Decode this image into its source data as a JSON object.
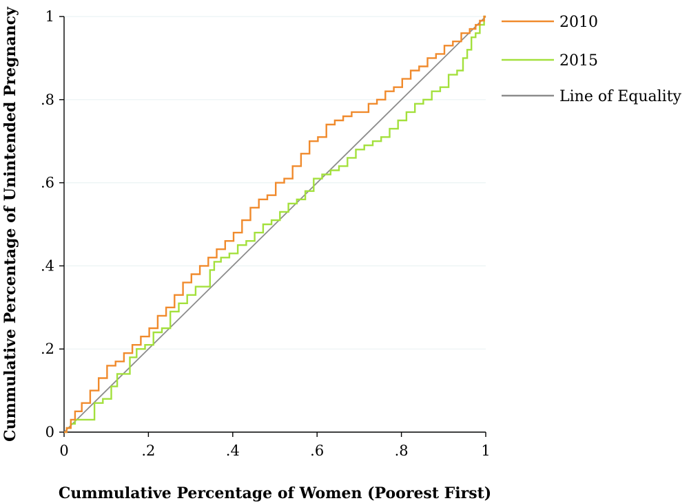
{
  "chart_data": {
    "type": "line",
    "xlabel": "Cummulative Percentage of Women (Poorest First)",
    "ylabel": "Cummulative Percentage of Unintended Pregnancy",
    "xlim": [
      0,
      1
    ],
    "ylim": [
      0,
      1
    ],
    "x_ticks": [
      {
        "value": 0,
        "label": "0"
      },
      {
        "value": 0.2,
        "label": ".2"
      },
      {
        "value": 0.4,
        "label": ".4"
      },
      {
        "value": 0.6,
        "label": ".6"
      },
      {
        "value": 0.8,
        "label": ".8"
      },
      {
        "value": 1,
        "label": "1"
      }
    ],
    "y_ticks": [
      {
        "value": 0,
        "label": "0"
      },
      {
        "value": 0.2,
        "label": ".2"
      },
      {
        "value": 0.4,
        "label": ".4"
      },
      {
        "value": 0.6,
        "label": ".6"
      },
      {
        "value": 0.8,
        "label": ".8"
      },
      {
        "value": 1,
        "label": "1"
      }
    ],
    "grid": "horizontal",
    "legend_position": "right",
    "series": [
      {
        "name": "2010",
        "color": "#f08a2c",
        "x": [
          0,
          0.01,
          0.02,
          0.03,
          0.05,
          0.07,
          0.09,
          0.11,
          0.13,
          0.15,
          0.17,
          0.19,
          0.21,
          0.23,
          0.25,
          0.27,
          0.29,
          0.31,
          0.33,
          0.35,
          0.37,
          0.39,
          0.41,
          0.43,
          0.45,
          0.47,
          0.49,
          0.51,
          0.53,
          0.55,
          0.57,
          0.59,
          0.61,
          0.63,
          0.65,
          0.67,
          0.69,
          0.71,
          0.73,
          0.75,
          0.77,
          0.79,
          0.81,
          0.83,
          0.85,
          0.87,
          0.89,
          0.91,
          0.93,
          0.95,
          0.97,
          0.98,
          0.99,
          1
        ],
        "y": [
          0,
          0.01,
          0.03,
          0.05,
          0.07,
          0.1,
          0.13,
          0.16,
          0.17,
          0.19,
          0.21,
          0.23,
          0.25,
          0.28,
          0.3,
          0.33,
          0.36,
          0.38,
          0.4,
          0.42,
          0.44,
          0.46,
          0.48,
          0.51,
          0.54,
          0.56,
          0.57,
          0.6,
          0.61,
          0.64,
          0.67,
          0.7,
          0.71,
          0.74,
          0.75,
          0.76,
          0.77,
          0.77,
          0.79,
          0.8,
          0.82,
          0.83,
          0.85,
          0.87,
          0.88,
          0.9,
          0.91,
          0.93,
          0.94,
          0.96,
          0.97,
          0.98,
          0.99,
          1
        ]
      },
      {
        "name": "2015",
        "color": "#a3e03c",
        "x": [
          0,
          0.01,
          0.02,
          0.03,
          0.06,
          0.08,
          0.1,
          0.12,
          0.13,
          0.15,
          0.16,
          0.18,
          0.2,
          0.22,
          0.24,
          0.26,
          0.28,
          0.3,
          0.32,
          0.34,
          0.35,
          0.36,
          0.38,
          0.4,
          0.42,
          0.44,
          0.46,
          0.48,
          0.5,
          0.52,
          0.54,
          0.56,
          0.58,
          0.6,
          0.62,
          0.64,
          0.66,
          0.68,
          0.7,
          0.72,
          0.74,
          0.76,
          0.78,
          0.8,
          0.82,
          0.84,
          0.86,
          0.88,
          0.9,
          0.92,
          0.94,
          0.95,
          0.96,
          0.97,
          0.98,
          0.99,
          1
        ],
        "y": [
          0,
          0.01,
          0.02,
          0.03,
          0.03,
          0.07,
          0.08,
          0.11,
          0.14,
          0.14,
          0.18,
          0.2,
          0.21,
          0.24,
          0.25,
          0.29,
          0.31,
          0.33,
          0.35,
          0.35,
          0.39,
          0.41,
          0.42,
          0.43,
          0.45,
          0.46,
          0.48,
          0.5,
          0.51,
          0.53,
          0.55,
          0.56,
          0.58,
          0.61,
          0.62,
          0.63,
          0.64,
          0.66,
          0.68,
          0.69,
          0.7,
          0.71,
          0.73,
          0.75,
          0.77,
          0.79,
          0.8,
          0.82,
          0.83,
          0.86,
          0.87,
          0.9,
          0.92,
          0.95,
          0.96,
          0.98,
          1
        ]
      },
      {
        "name": "Line of Equality",
        "color": "#8c8c8c",
        "x": [
          0,
          1
        ],
        "y": [
          0,
          1
        ]
      }
    ]
  }
}
